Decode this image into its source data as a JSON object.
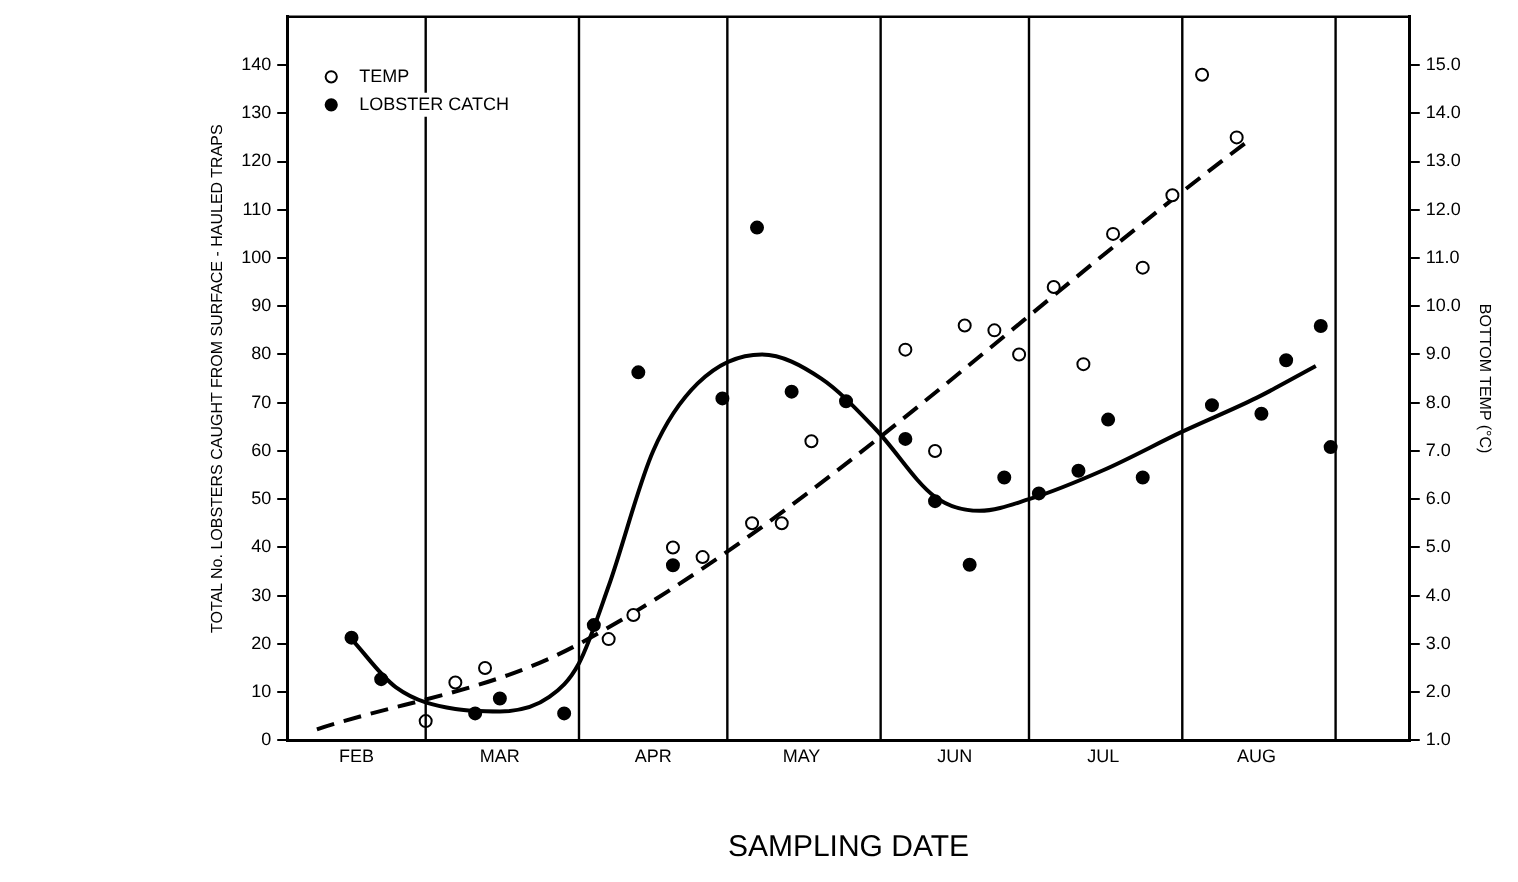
{
  "chart_data": {
    "type": "scatter",
    "xlabel": "SAMPLING DATE",
    "ylabel": "TOTAL No. LOBSTERS CAUGHT FROM SURFACE - HAULED TRAPS",
    "y2label": "BOTTOM TEMP (°C)",
    "xlim": [
      "--02-01",
      "--09-16"
    ],
    "xticks": [
      {
        "value": "--02-15",
        "label": "FEB"
      },
      {
        "value": "--03-16",
        "label": "MAR"
      },
      {
        "value": "--04-16",
        "label": "APR"
      },
      {
        "value": "--05-16",
        "label": "MAY"
      },
      {
        "value": "--06-16",
        "label": "JUN"
      },
      {
        "value": "--07-16",
        "label": "JUL"
      },
      {
        "value": "--08-16",
        "label": "AUG"
      }
    ],
    "ylim": [
      0,
      150
    ],
    "yticks": [
      0,
      10,
      20,
      30,
      40,
      50,
      60,
      70,
      80,
      90,
      100,
      110,
      120,
      130,
      140
    ],
    "y2lim": [
      1,
      16
    ],
    "y2ticks": [
      {
        "value": 1,
        "label": "1.0"
      },
      {
        "value": 2,
        "label": "2.0"
      },
      {
        "value": 3,
        "label": "3.0"
      },
      {
        "value": 4,
        "label": "4.0"
      },
      {
        "value": 5,
        "label": "5.0"
      },
      {
        "value": 6,
        "label": "6.0"
      },
      {
        "value": 7,
        "label": "7.0"
      },
      {
        "value": 8,
        "label": "8.0"
      },
      {
        "value": 9,
        "label": "9.0"
      },
      {
        "value": 10,
        "label": "10.0"
      },
      {
        "value": 11,
        "label": "11.0"
      },
      {
        "value": 12,
        "label": "12.0"
      },
      {
        "value": 13,
        "label": "13.0"
      },
      {
        "value": 14,
        "label": "14.0"
      },
      {
        "value": 15,
        "label": "15.0"
      }
    ],
    "grid": false,
    "legend": "top left",
    "ref_lines": [
      {
        "axis": "x",
        "value": "--03-01"
      },
      {
        "axis": "x",
        "value": "--04-01"
      },
      {
        "axis": "x",
        "value": "--05-01"
      },
      {
        "axis": "x",
        "value": "--06-01"
      },
      {
        "axis": "x",
        "value": "--07-01"
      },
      {
        "axis": "x",
        "value": "--08-01"
      },
      {
        "axis": "x",
        "value": "--09-01"
      }
    ],
    "series": [
      {
        "name": "TEMP",
        "axis": "y2",
        "marker": "circle",
        "color": "#000000",
        "x": [
          "--03-01",
          "--03-07",
          "--03-13",
          "--04-07",
          "--04-12",
          "--04-20",
          "--04-26",
          "--05-06",
          "--05-12",
          "--05-18",
          "--06-06",
          "--06-12",
          "--06-18",
          "--06-24",
          "--06-29",
          "--07-06",
          "--07-12",
          "--07-18",
          "--07-24",
          "--07-30",
          "--08-05",
          "--08-12"
        ],
        "values": [
          1.4,
          2.2,
          2.5,
          3.1,
          3.6,
          5.0,
          4.8,
          5.5,
          5.5,
          7.2,
          9.1,
          7.0,
          9.6,
          9.5,
          9.0,
          10.4,
          8.8,
          11.5,
          10.8,
          12.3,
          14.8,
          13.5
        ]
      },
      {
        "name": "LOBSTER CATCH",
        "marker": "circle",
        "color": "#000000",
        "x": [
          "--02-14",
          "--02-20",
          "--03-11",
          "--03-16",
          "--03-29",
          "--04-04",
          "--04-13",
          "--04-20",
          "--04-30",
          "--05-07",
          "--05-14",
          "--05-25",
          "--06-06",
          "--06-12",
          "--06-19",
          "--06-26",
          "--07-03",
          "--07-11",
          "--07-17",
          "--07-24",
          "--08-07",
          "--08-17",
          "--08-22",
          "--08-29",
          "--08-31"
        ],
        "values": [
          21.3,
          12.7,
          5.6,
          8.7,
          5.6,
          23.9,
          76.3,
          36.3,
          70.9,
          106.3,
          72.3,
          70.3,
          62.5,
          49.6,
          36.4,
          54.5,
          51.2,
          55.9,
          66.5,
          54.5,
          69.5,
          67.7,
          78.8,
          85.9,
          60.8
        ]
      },
      {
        "type": "line",
        "axis": "y2",
        "line_style": "dashed",
        "marker": "none",
        "color": "#000000",
        "x": [
          "--02-07",
          "--04-01",
          "--08-14"
        ],
        "values": [
          1.23,
          3.0,
          13.4
        ]
      },
      {
        "type": "line",
        "line_style": "solid",
        "marker": "none",
        "color": "#000000",
        "x": [
          "--02-14",
          "--02-23",
          "--03-07",
          "--03-16",
          "--03-26",
          "--04-01",
          "--04-07",
          "--04-16",
          "--04-25",
          "--05-08",
          "--05-20",
          "--05-31",
          "--06-12",
          "--06-21",
          "--07-01",
          "--07-16",
          "--08-01",
          "--08-16",
          "--08-28"
        ],
        "values": [
          21,
          11,
          6.5,
          6,
          9,
          16,
          32,
          60,
          74,
          80,
          75,
          64.5,
          50.5,
          47.6,
          50,
          56,
          64,
          71,
          77.6
        ]
      }
    ]
  }
}
